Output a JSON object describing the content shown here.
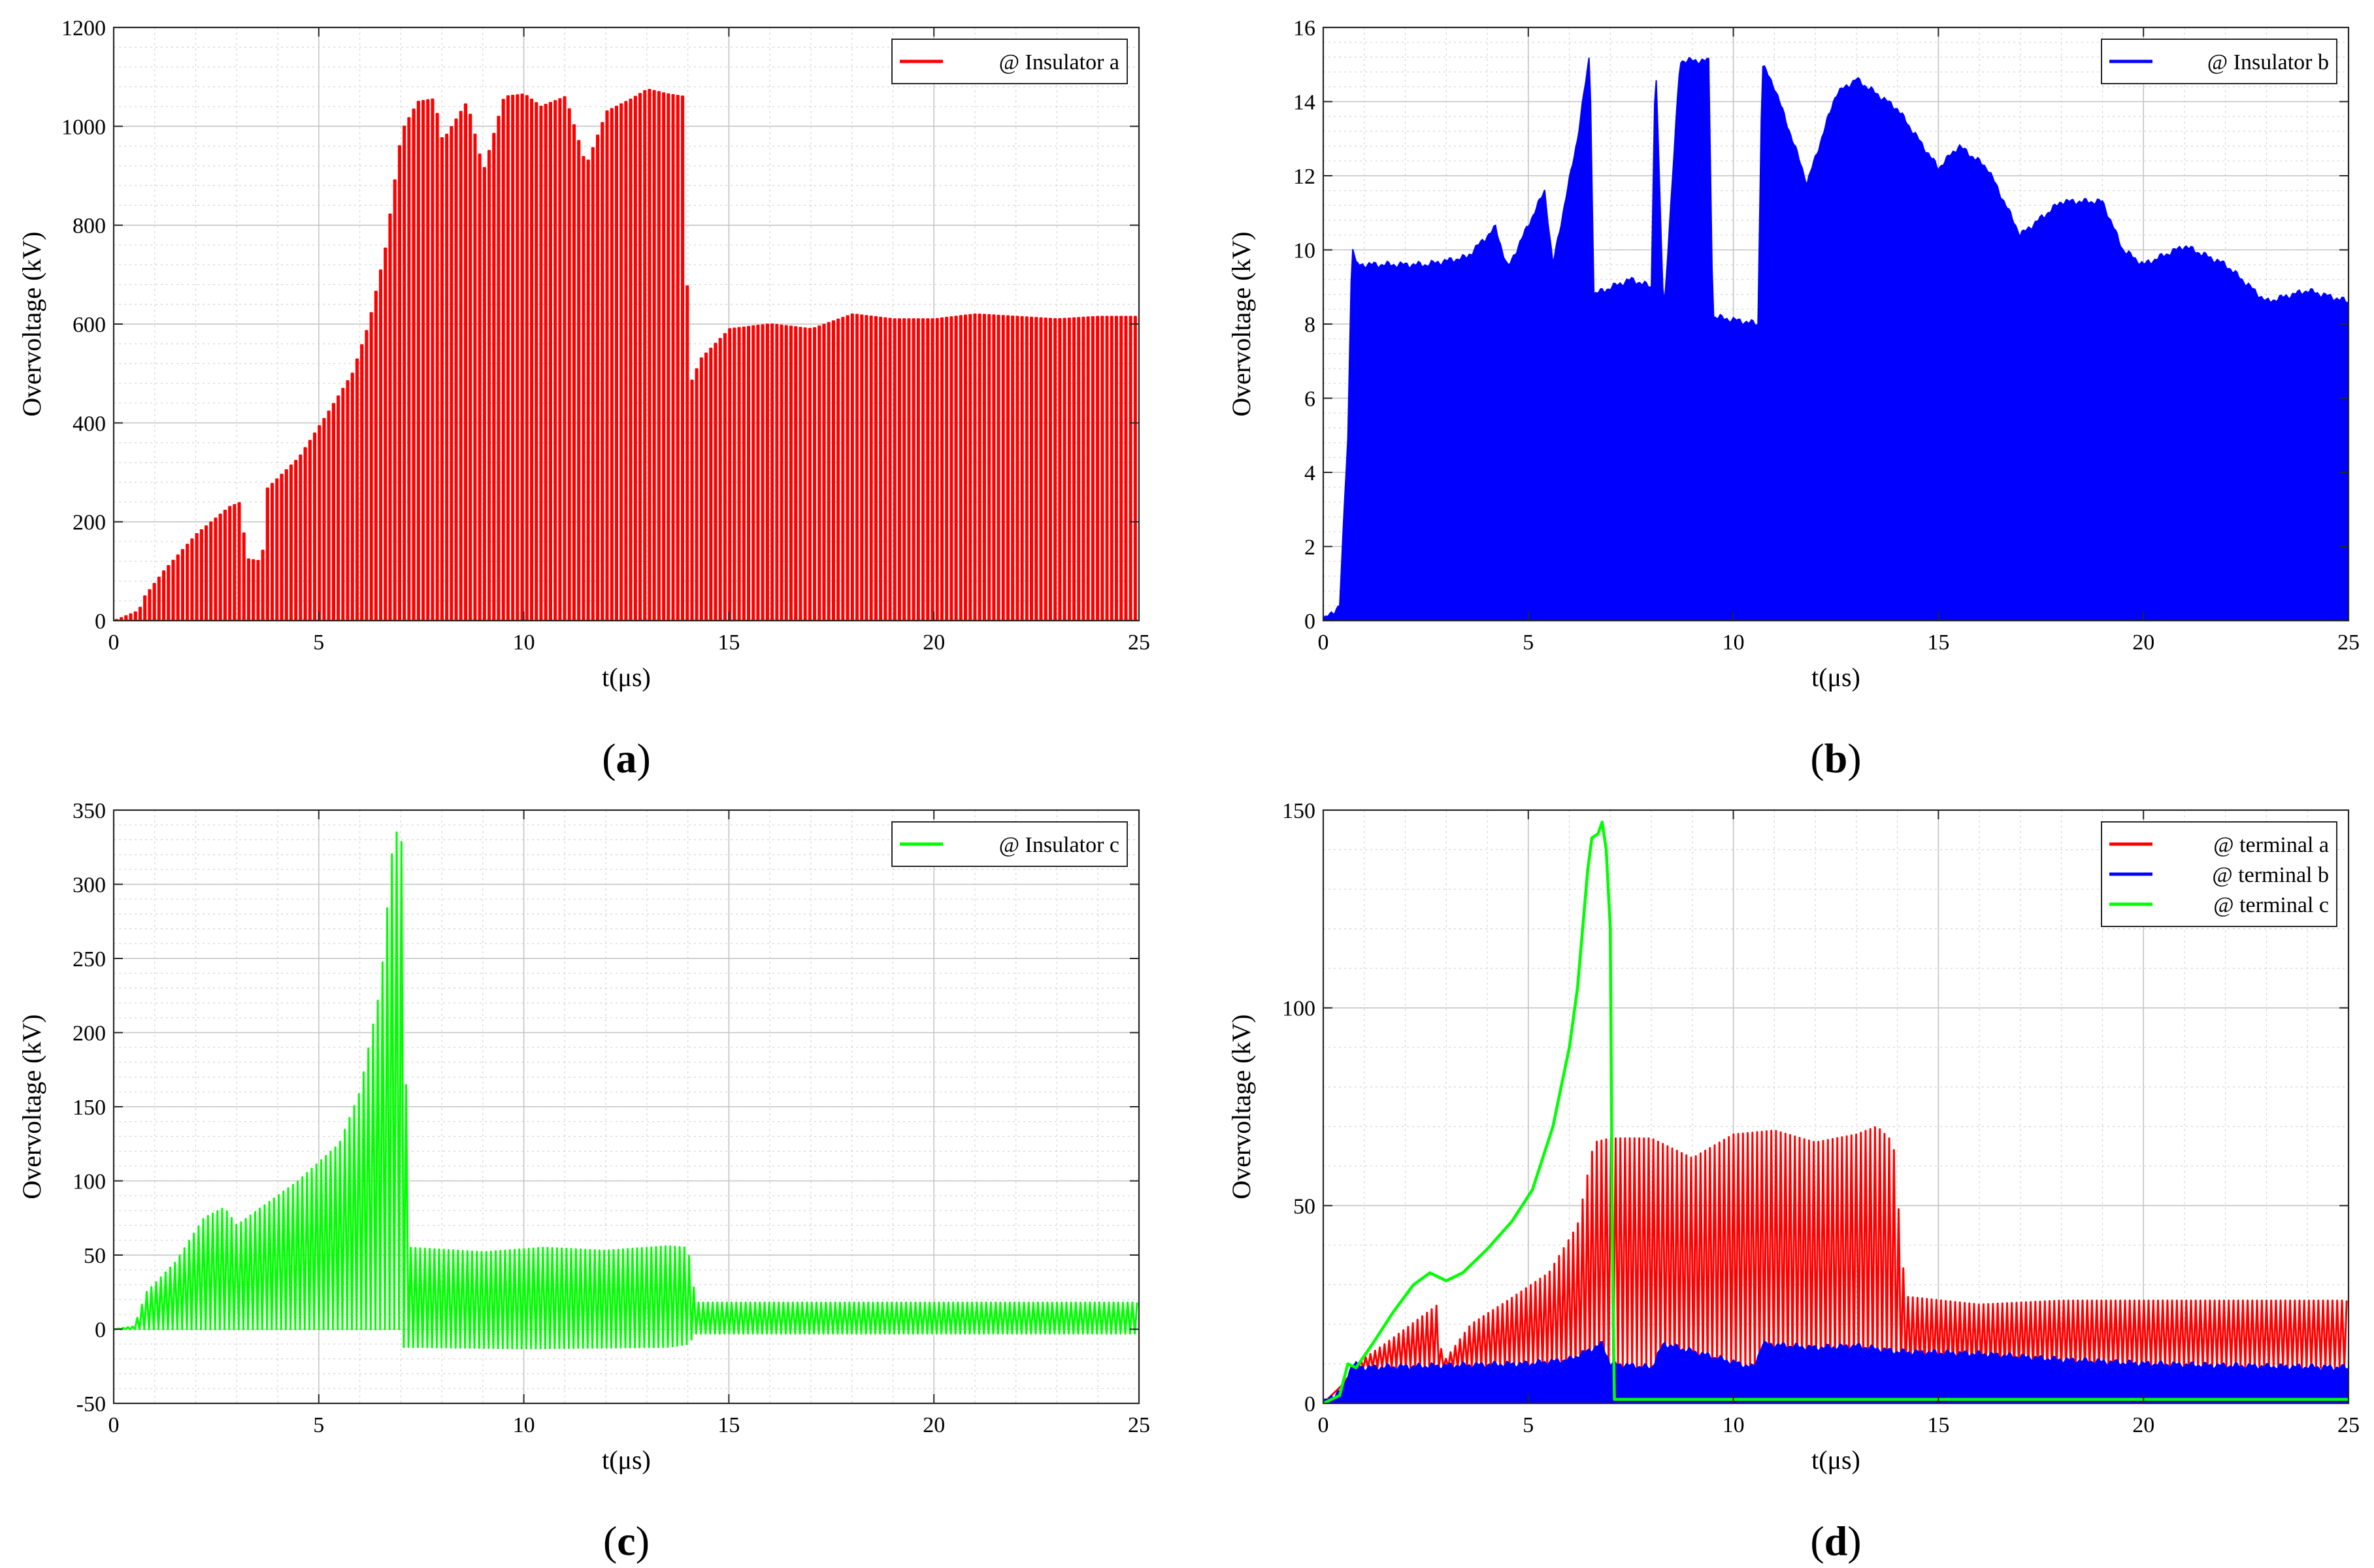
{
  "chart_data": [
    {
      "type": "line",
      "panel_label": "(a)",
      "panel_letter": "a",
      "xlabel": "t(μs)",
      "ylabel": "Overvoltage (kV)",
      "xlim": [
        0,
        25
      ],
      "ylim": [
        0,
        1200
      ],
      "xticks": [
        0,
        5,
        10,
        15,
        20,
        25
      ],
      "yticks": [
        0,
        200,
        400,
        600,
        800,
        1000,
        1200
      ],
      "grid": true,
      "legend_position": "top-right",
      "series": [
        {
          "name": "@ Insulator a",
          "color": "#ff0000",
          "render": "pulse_train",
          "pulse_period_us": 0.115,
          "baseline": 0,
          "envelope_t": [
            0,
            0.6,
            0.7,
            1.2,
            2.0,
            2.8,
            3.1,
            3.2,
            3.6,
            3.7,
            4.5,
            5.2,
            5.8,
            6.2,
            6.6,
            7.0,
            7.4,
            7.8,
            8.0,
            8.6,
            9.0,
            9.5,
            10.0,
            10.4,
            11.0,
            11.5,
            12.0,
            12.6,
            13.0,
            13.5,
            13.9,
            14.0,
            14.3,
            15.0,
            16.0,
            17.0,
            18.0,
            19.0,
            20.0,
            21.0,
            22.0,
            23.0,
            24.0,
            25.0
          ],
          "envelope_y": [
            0,
            20,
            45,
            100,
            175,
            230,
            240,
            125,
            120,
            265,
            330,
            420,
            500,
            600,
            750,
            990,
            1050,
            1055,
            970,
            1050,
            910,
            1060,
            1065,
            1040,
            1060,
            920,
            1030,
            1055,
            1075,
            1065,
            1060,
            470,
            530,
            590,
            600,
            590,
            620,
            610,
            610,
            620,
            615,
            610,
            615,
            615
          ]
        }
      ]
    },
    {
      "type": "line",
      "panel_label": "(b)",
      "panel_letter": "b",
      "xlabel": "t(μs)",
      "ylabel": "Overvoltage (kV)",
      "xlim": [
        0,
        25
      ],
      "ylim": [
        0,
        16
      ],
      "xticks": [
        0,
        5,
        10,
        15,
        20,
        25
      ],
      "yticks": [
        0,
        2,
        4,
        6,
        8,
        10,
        12,
        14,
        16
      ],
      "grid": true,
      "legend_position": "top-right",
      "series": [
        {
          "name": "@ Insulator b",
          "color": "#0000ff",
          "render": "filled_band",
          "baseline": 0,
          "envelope_t": [
            0,
            0.4,
            0.6,
            0.7,
            0.8,
            1.5,
            2.5,
            3.5,
            4.2,
            4.5,
            5.4,
            5.6,
            6.2,
            6.5,
            6.6,
            7.5,
            8.0,
            8.1,
            8.3,
            8.7,
            9.4,
            9.5,
            10.6,
            10.7,
            11.0,
            11.8,
            12.5,
            13.0,
            14.0,
            15.0,
            15.5,
            16.2,
            17.0,
            18.0,
            19.0,
            19.5,
            20.0,
            21.0,
            22.0,
            23.0,
            24.0,
            25.0
          ],
          "envelope_y": [
            0,
            0.4,
            5,
            10.2,
            9.6,
            9.6,
            9.6,
            9.8,
            10.6,
            9.5,
            11.6,
            9.6,
            13.0,
            15.3,
            8.8,
            9.2,
            9.0,
            15.3,
            8.2,
            15.1,
            15.1,
            8.2,
            8.0,
            15.0,
            14.4,
            11.8,
            14.2,
            14.6,
            13.8,
            12.2,
            12.8,
            12.2,
            10.4,
            11.3,
            11.3,
            10.0,
            9.6,
            10.1,
            9.6,
            8.6,
            8.9,
            8.6
          ]
        }
      ]
    },
    {
      "type": "line",
      "panel_label": "(c)",
      "panel_letter": "c",
      "xlabel": "t(μs)",
      "ylabel": "Overvoltage (kV)",
      "xlim": [
        0,
        25
      ],
      "ylim": [
        -50,
        350
      ],
      "xticks": [
        0,
        5,
        10,
        15,
        20,
        25
      ],
      "yticks": [
        -50,
        0,
        50,
        100,
        150,
        200,
        250,
        300,
        350
      ],
      "grid": true,
      "legend_position": "top-right",
      "series": [
        {
          "name": "@ Insulator c",
          "color": "#00ff00",
          "render": "oscillation",
          "osc_period_us": 0.115,
          "upper_t": [
            0,
            0.5,
            0.8,
            1.5,
            2.2,
            2.7,
            3.0,
            3.5,
            4.5,
            5.5,
            6.0,
            6.5,
            6.8,
            7.0,
            7.05,
            7.2,
            9.0,
            10.5,
            12.0,
            13.5,
            14.0,
            14.2,
            16.0,
            18.0,
            20.0,
            22.0,
            25.0
          ],
          "upper_y": [
            0,
            2,
            25,
            45,
            75,
            82,
            70,
            80,
            100,
            125,
            160,
            230,
            325,
            345,
            290,
            55,
            52,
            55,
            53,
            56,
            55,
            18,
            18,
            18,
            18,
            18,
            18
          ],
          "lower_t": [
            0,
            7.0,
            7.05,
            7.2,
            10.0,
            13.5,
            14.0,
            14.2,
            16.0,
            20.0,
            25.0
          ],
          "lower_y": [
            0,
            0,
            -12,
            -12,
            -13,
            -12,
            -10,
            -3,
            -3,
            -3,
            -3
          ]
        }
      ]
    },
    {
      "type": "line",
      "panel_label": "(d)",
      "panel_letter": "d",
      "xlabel": "t(μs)",
      "ylabel": "Overvoltage (kV)",
      "xlim": [
        0,
        25
      ],
      "ylim": [
        0,
        150
      ],
      "xticks": [
        0,
        5,
        10,
        15,
        20,
        25
      ],
      "yticks": [
        0,
        50,
        100,
        150
      ],
      "grid": true,
      "legend_position": "top-right",
      "series": [
        {
          "name": "@ terminal a",
          "color": "#ff0000",
          "render": "oscillation",
          "osc_period_us": 0.115,
          "upper_t": [
            0,
            0.5,
            0.8,
            1.5,
            2.8,
            2.9,
            3.6,
            4.5,
            5.5,
            6.2,
            6.6,
            7.0,
            8.0,
            9.0,
            10.0,
            11.0,
            12.0,
            13.0,
            13.5,
            13.9,
            14.2,
            16.0,
            18.0,
            20.0,
            22.0,
            25.0
          ],
          "upper_y": [
            0,
            5,
            10,
            15,
            25,
            10,
            20,
            26,
            33,
            45,
            66,
            67,
            67,
            62,
            68,
            69,
            66,
            68,
            70,
            66,
            27,
            25,
            26,
            26,
            26,
            26
          ],
          "lower_t": [
            0,
            0.5,
            0.8,
            25.0
          ],
          "lower_y": [
            0,
            5,
            9,
            9
          ]
        },
        {
          "name": "@ terminal b",
          "color": "#0000ff",
          "render": "filled_band",
          "envelope_t": [
            0,
            0.5,
            0.7,
            1.0,
            3.0,
            5.0,
            6.0,
            6.8,
            7.0,
            8.0,
            8.3,
            10.5,
            10.7,
            12.0,
            13.0,
            14.0,
            16.0,
            18.0,
            20.0,
            22.0,
            25.0
          ],
          "envelope_y": [
            0,
            4,
            10,
            9,
            9.5,
            10,
            11,
            15,
            10,
            9,
            15,
            9,
            15,
            14,
            14.5,
            13,
            12.5,
            11,
            10,
            9.5,
            9
          ],
          "baseline": 0
        },
        {
          "name": "@ terminal c",
          "color": "#00ff00",
          "render": "line",
          "x": [
            0,
            0.4,
            0.6,
            0.8,
            1.2,
            1.7,
            2.2,
            2.6,
            3.0,
            3.4,
            4.0,
            4.6,
            5.1,
            5.6,
            6.0,
            6.2,
            6.45,
            6.55,
            6.7,
            6.8,
            6.9,
            7.0,
            7.05,
            7.1,
            25.0
          ],
          "y": [
            0,
            2,
            10,
            9,
            15,
            23,
            30,
            33,
            31,
            33,
            39,
            46,
            54,
            70,
            90,
            105,
            135,
            143,
            144,
            147,
            140,
            120,
            40,
            1,
            1
          ]
        }
      ]
    }
  ]
}
